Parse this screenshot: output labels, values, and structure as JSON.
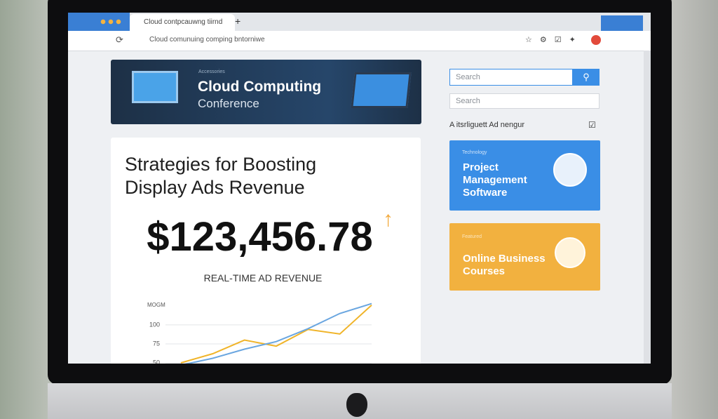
{
  "browser": {
    "tab_title": "Cloud contpcauwng tiirnd",
    "address": "Cloud comunuing comping bntorniwe"
  },
  "banner": {
    "eyebrow": "Accessories",
    "title": "Cloud Computing",
    "subtitle": "Conference"
  },
  "sidebar": {
    "search_placeholder": "Search",
    "select_placeholder": "Search",
    "ad_label": "A itsrliguett Ad nengur",
    "cards": [
      {
        "eyebrow": "Technology",
        "title": "Project Management Software"
      },
      {
        "eyebrow": "Featured",
        "title": "Online Business Courses"
      }
    ]
  },
  "article": {
    "title": "Strategies for Boosting Display Ads Revenue",
    "revenue": "$123,456.78",
    "revenue_label": "REAL-TIME AD REVENUE"
  },
  "chart_data": {
    "type": "line",
    "title": "MOGM",
    "ylim": [
      50,
      135
    ],
    "yticks": [
      50,
      75,
      100
    ],
    "grid": true,
    "series": [
      {
        "color": "#f0b429",
        "values": [
          50,
          62,
          80,
          72,
          94,
          88,
          126
        ]
      },
      {
        "color": "#6aa6e0",
        "values": [
          47,
          56,
          68,
          78,
          95,
          115,
          128
        ]
      }
    ]
  }
}
